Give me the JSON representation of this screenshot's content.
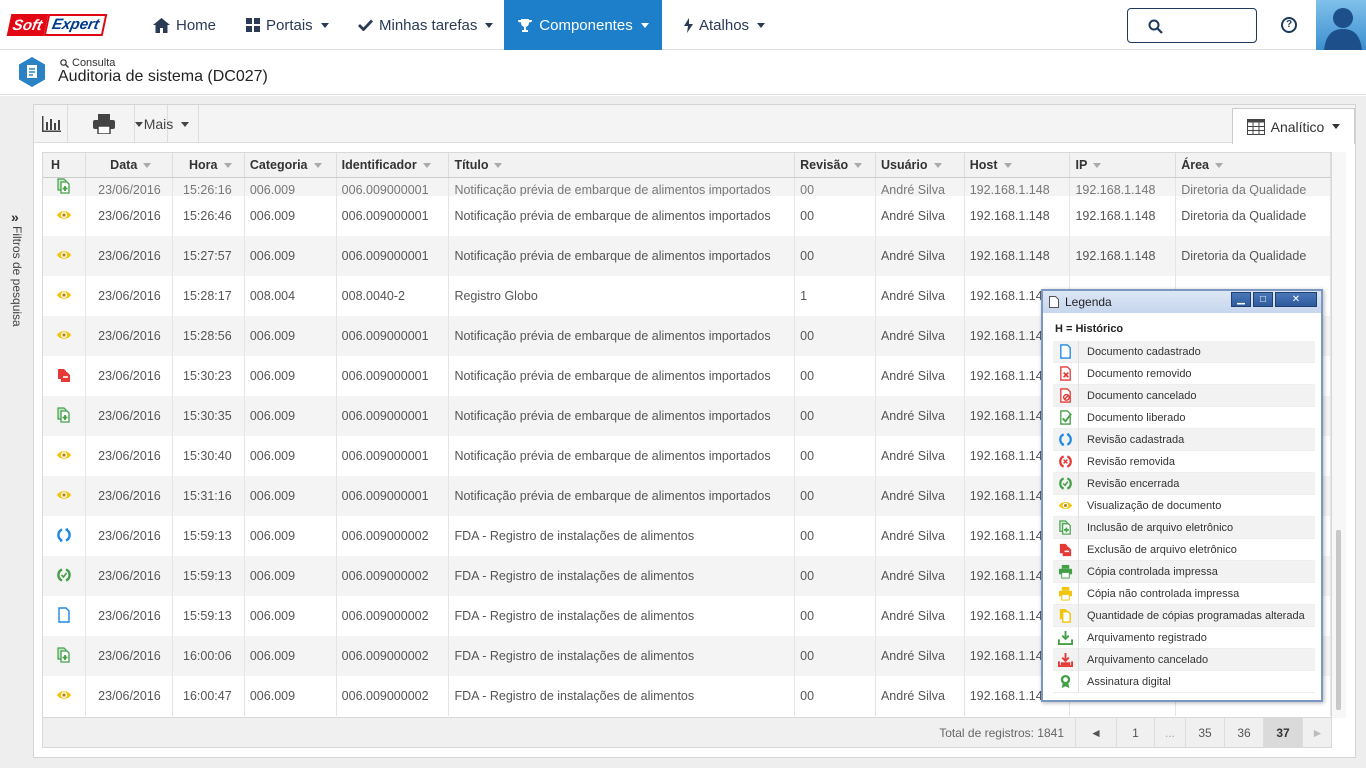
{
  "app": {
    "logo_part1": "Soft",
    "logo_part2": "Expert"
  },
  "nav": [
    {
      "label": "Home",
      "icon": "home-icon"
    },
    {
      "label": "Portais",
      "icon": "grid-icon"
    },
    {
      "label": "Minhas tarefas",
      "icon": "check-icon"
    },
    {
      "label": "Componentes",
      "icon": "trophy-icon",
      "active": true
    },
    {
      "label": "Atalhos",
      "icon": "bolt-icon"
    }
  ],
  "colors": {
    "accent": "#1d7fc9",
    "brand_red": "#e30613",
    "navy": "#1d3a5c",
    "view_icon": "#f1c40f",
    "create_icon": "#43a047",
    "delete_icon": "#e53935",
    "revision_icon": "#1e88e5"
  },
  "breadcrumb": "Consulta",
  "page_title": "Auditoria de sistema (DC027)",
  "sidebar_label": "Filtros de pesquisa",
  "toolbar": {
    "more_label": "Mais",
    "view_label": "Analítico"
  },
  "table": {
    "headers": [
      "H",
      "Data",
      "Hora",
      "Categoria",
      "Identificador",
      "Título",
      "Revisão",
      "Usuário",
      "Host",
      "IP",
      "Área"
    ],
    "partial_row": {
      "icon": "file-add",
      "date": "23/06/2016",
      "time": "15:26:16",
      "category": "006.009",
      "identifier": "006.009000001",
      "title": "Notificação prévia de embarque de alimentos importados",
      "revision": "00",
      "user": "André Silva",
      "host": "192.168.1.148",
      "ip": "192.168.1.148",
      "area": "Diretoria da Qualidade"
    },
    "rows": [
      {
        "icon": "eye",
        "date": "23/06/2016",
        "time": "15:26:46",
        "category": "006.009",
        "identifier": "006.009000001",
        "title": "Notificação prévia de embarque de alimentos importados",
        "revision": "00",
        "user": "André Silva",
        "host": "192.168.1.148",
        "ip": "192.168.1.148",
        "area": "Diretoria da Qualidade"
      },
      {
        "icon": "eye",
        "date": "23/06/2016",
        "time": "15:27:57",
        "category": "006.009",
        "identifier": "006.009000001",
        "title": "Notificação prévia de embarque de alimentos importados",
        "revision": "00",
        "user": "André Silva",
        "host": "192.168.1.148",
        "ip": "192.168.1.148",
        "area": "Diretoria da Qualidade"
      },
      {
        "icon": "eye",
        "date": "23/06/2016",
        "time": "15:28:17",
        "category": "008.004",
        "identifier": "008.0040-2",
        "title": "Registro Globo",
        "revision": "1",
        "user": "André Silva",
        "host": "192.168.1.14",
        "ip": "",
        "area": ""
      },
      {
        "icon": "eye",
        "date": "23/06/2016",
        "time": "15:28:56",
        "category": "006.009",
        "identifier": "006.009000001",
        "title": "Notificação prévia de embarque de alimentos importados",
        "revision": "00",
        "user": "André Silva",
        "host": "192.168.1.14",
        "ip": "",
        "area": ""
      },
      {
        "icon": "file-remove",
        "date": "23/06/2016",
        "time": "15:30:23",
        "category": "006.009",
        "identifier": "006.009000001",
        "title": "Notificação prévia de embarque de alimentos importados",
        "revision": "00",
        "user": "André Silva",
        "host": "192.168.1.14",
        "ip": "",
        "area": ""
      },
      {
        "icon": "file-add",
        "date": "23/06/2016",
        "time": "15:30:35",
        "category": "006.009",
        "identifier": "006.009000001",
        "title": "Notificação prévia de embarque de alimentos importados",
        "revision": "00",
        "user": "André Silva",
        "host": "192.168.1.14",
        "ip": "",
        "area": ""
      },
      {
        "icon": "eye",
        "date": "23/06/2016",
        "time": "15:30:40",
        "category": "006.009",
        "identifier": "006.009000001",
        "title": "Notificação prévia de embarque de alimentos importados",
        "revision": "00",
        "user": "André Silva",
        "host": "192.168.1.14",
        "ip": "",
        "area": ""
      },
      {
        "icon": "eye",
        "date": "23/06/2016",
        "time": "15:31:16",
        "category": "006.009",
        "identifier": "006.009000001",
        "title": "Notificação prévia de embarque de alimentos importados",
        "revision": "00",
        "user": "André Silva",
        "host": "192.168.1.14",
        "ip": "",
        "area": ""
      },
      {
        "icon": "revision",
        "date": "23/06/2016",
        "time": "15:59:13",
        "category": "006.009",
        "identifier": "006.009000002",
        "title": "FDA - Registro de instalações de alimentos",
        "revision": "00",
        "user": "André Silva",
        "host": "192.168.1.14",
        "ip": "",
        "area": ""
      },
      {
        "icon": "revision-closed",
        "date": "23/06/2016",
        "time": "15:59:13",
        "category": "006.009",
        "identifier": "006.009000002",
        "title": "FDA - Registro de instalações de alimentos",
        "revision": "00",
        "user": "André Silva",
        "host": "192.168.1.14",
        "ip": "",
        "area": ""
      },
      {
        "icon": "document",
        "date": "23/06/2016",
        "time": "15:59:13",
        "category": "006.009",
        "identifier": "006.009000002",
        "title": "FDA - Registro de instalações de alimentos",
        "revision": "00",
        "user": "André Silva",
        "host": "192.168.1.14",
        "ip": "",
        "area": ""
      },
      {
        "icon": "file-add",
        "date": "23/06/2016",
        "time": "16:00:06",
        "category": "006.009",
        "identifier": "006.009000002",
        "title": "FDA - Registro de instalações de alimentos",
        "revision": "00",
        "user": "André Silva",
        "host": "192.168.1.14",
        "ip": "",
        "area": ""
      },
      {
        "icon": "eye",
        "date": "23/06/2016",
        "time": "16:00:47",
        "category": "006.009",
        "identifier": "006.009000002",
        "title": "FDA - Registro de instalações de alimentos",
        "revision": "00",
        "user": "André Silva",
        "host": "192.168.1.14",
        "ip": "",
        "area": ""
      }
    ]
  },
  "pagination": {
    "total_label": "Total de registros: 1841",
    "pages": [
      "1",
      "...",
      "35",
      "36",
      "37"
    ],
    "current": "37",
    "prev": "◄",
    "next": "►"
  },
  "legend": {
    "title": "Legenda",
    "header": "H = Histórico",
    "items": [
      {
        "icon": "document",
        "label": "Documento cadastrado"
      },
      {
        "icon": "doc-removed",
        "label": "Documento removido"
      },
      {
        "icon": "doc-cancel",
        "label": "Documento cancelado"
      },
      {
        "icon": "doc-released",
        "label": "Documento liberado"
      },
      {
        "icon": "revision",
        "label": "Revisão cadastrada"
      },
      {
        "icon": "revision-removed",
        "label": "Revisão removida"
      },
      {
        "icon": "revision-closed",
        "label": "Revisão encerrada"
      },
      {
        "icon": "eye",
        "label": "Visualização de documento"
      },
      {
        "icon": "file-add",
        "label": "Inclusão de arquivo eletrônico"
      },
      {
        "icon": "file-remove",
        "label": "Exclusão de arquivo eletrônico"
      },
      {
        "icon": "print-green",
        "label": "Cópia controlada impressa"
      },
      {
        "icon": "print-yellow",
        "label": "Cópia não controlada impressa"
      },
      {
        "icon": "copies",
        "label": "Quantidade de cópias programadas alterada"
      },
      {
        "icon": "archive",
        "label": "Arquivamento registrado"
      },
      {
        "icon": "archive-cancel",
        "label": "Arquivamento cancelado"
      },
      {
        "icon": "signature",
        "label": "Assinatura digital"
      }
    ]
  }
}
